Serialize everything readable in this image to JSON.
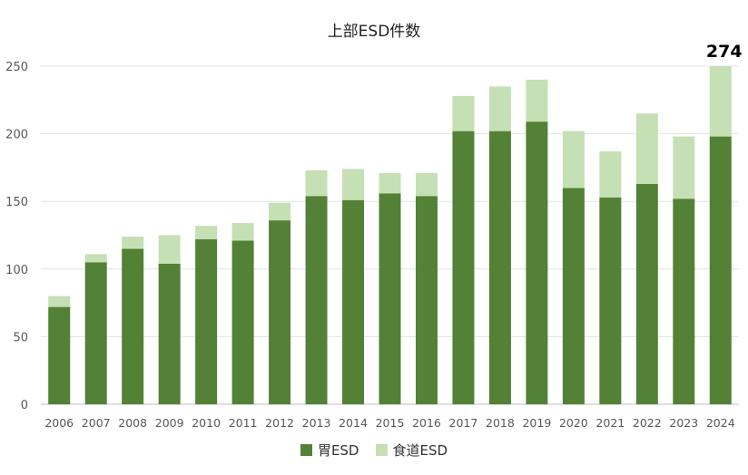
{
  "chart_data": {
    "type": "bar",
    "stacked": true,
    "title": "上部ESD件数",
    "xlabel": "",
    "ylabel": "",
    "categories": [
      "2006",
      "2007",
      "2008",
      "2009",
      "2010",
      "2011",
      "2012",
      "2013",
      "2014",
      "2015",
      "2016",
      "2017",
      "2018",
      "2019",
      "2020",
      "2021",
      "2022",
      "2023",
      "2024"
    ],
    "series": [
      {
        "name": "胃ESD",
        "color": "#538135",
        "values": [
          72,
          105,
          115,
          104,
          122,
          121,
          136,
          154,
          151,
          156,
          154,
          202,
          202,
          209,
          160,
          153,
          163,
          152,
          198
        ]
      },
      {
        "name": "食道ESD",
        "color": "#c5e0b4",
        "values": [
          8,
          6,
          9,
          21,
          10,
          13,
          13,
          19,
          23,
          15,
          17,
          26,
          33,
          31,
          42,
          34,
          52,
          46,
          76
        ]
      }
    ],
    "ylim": [
      0,
      250
    ],
    "yticks": [
      0,
      50,
      100,
      150,
      200,
      250
    ],
    "grid": true,
    "legend_position": "bottom",
    "annotations": [
      {
        "category": "2024",
        "text": "274"
      }
    ]
  }
}
